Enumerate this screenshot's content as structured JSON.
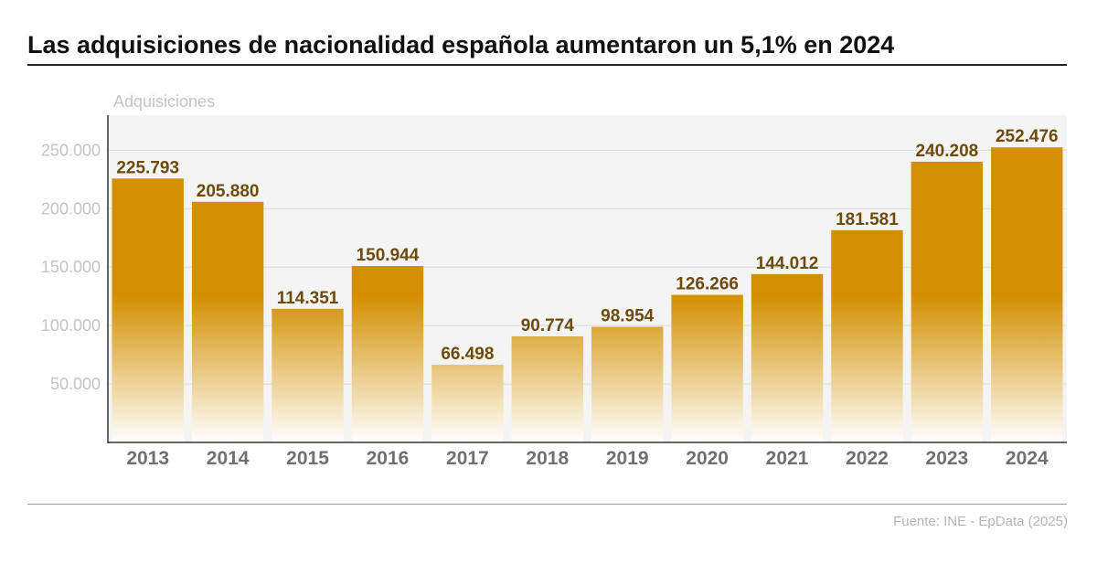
{
  "title": "Las adquisiciones de nacionalidad española aumentaron un 5,1% en 2024",
  "source": "Fuente: INE - EpData (2025)",
  "colors": {
    "bar": "#d38f00",
    "bar_fade": "#ffffff",
    "plot_bg": "#f4f4f4",
    "data_label": "#6e4a0c"
  },
  "chart_data": {
    "type": "bar",
    "title": "Las adquisiciones de nacionalidad española aumentaron un 5,1% en 2024",
    "ylabel": "Adquisiciones",
    "xlabel": "",
    "ylim": [
      0,
      280000
    ],
    "grid": true,
    "categories": [
      "2013",
      "2014",
      "2015",
      "2016",
      "2017",
      "2018",
      "2019",
      "2020",
      "2021",
      "2022",
      "2023",
      "2024"
    ],
    "values": [
      225793,
      205880,
      114351,
      150944,
      66498,
      90774,
      98954,
      126266,
      144012,
      181581,
      240208,
      252476
    ],
    "value_labels": [
      "225.793",
      "205.880",
      "114.351",
      "150.944",
      "66.498",
      "90.774",
      "98.954",
      "126.266",
      "144.012",
      "181.581",
      "240.208",
      "252.476"
    ],
    "yticks": [
      50000,
      100000,
      150000,
      200000,
      250000
    ],
    "ytick_labels": [
      "50.000",
      "100.000",
      "150.000",
      "200.000",
      "250.000"
    ]
  }
}
